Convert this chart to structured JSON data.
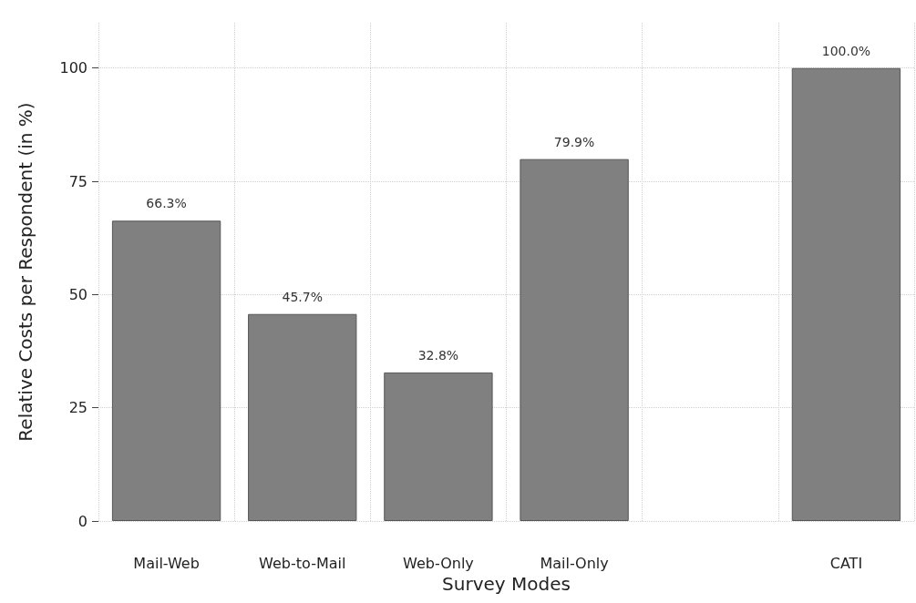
{
  "chart_data": {
    "type": "bar",
    "xlabel": "Survey Modes",
    "ylabel": "Relative Costs per Respondent (in %)",
    "categories": [
      "Mail-Web",
      "Web-to-Mail",
      "Web-Only",
      "Mail-Only",
      null,
      "CATI"
    ],
    "values": [
      66.3,
      45.7,
      32.8,
      79.9,
      null,
      100.0
    ],
    "value_labels": [
      "66.3%",
      "45.7%",
      "32.8%",
      "79.9%",
      null,
      "100.0%"
    ],
    "color": "#808080",
    "ylim": [
      0,
      110
    ],
    "yticks": [
      0,
      25,
      50,
      75,
      100
    ],
    "grid": true
  }
}
